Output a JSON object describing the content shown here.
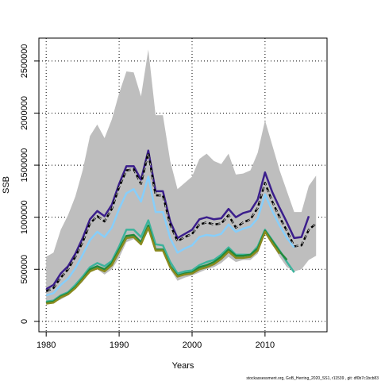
{
  "chart_data": {
    "type": "line",
    "title": "",
    "xlabel": "Years",
    "ylabel": "SSB",
    "xlim": [
      1979,
      2018.5
    ],
    "ylim": [
      -100000,
      2720000
    ],
    "x_ticks": [
      1980,
      1990,
      2000,
      2010
    ],
    "y_ticks": [
      0,
      500000,
      1000000,
      1500000,
      2000000,
      2500000
    ],
    "y_tick_labels": [
      "0",
      "500000",
      "1000000",
      "1500000",
      "2000000",
      "2500000"
    ],
    "grid": "dotted at ticks",
    "band": {
      "color": "#bebebe",
      "x": [
        1980,
        1981,
        1982,
        1983,
        1984,
        1985,
        1986,
        1987,
        1988,
        1989,
        1990,
        1991,
        1992,
        1993,
        1994,
        1995,
        1996,
        1997,
        1998,
        1999,
        2000,
        2001,
        2002,
        2003,
        2004,
        2005,
        2006,
        2007,
        2008,
        2009,
        2010,
        2011,
        2012,
        2013,
        2014,
        2015,
        2016,
        2017
      ],
      "upper": [
        620000,
        660000,
        880000,
        1020000,
        1200000,
        1450000,
        1780000,
        1890000,
        1760000,
        1940000,
        2190000,
        2400000,
        2390000,
        2160000,
        2610000,
        1980000,
        1980000,
        1540000,
        1270000,
        1330000,
        1390000,
        1560000,
        1610000,
        1540000,
        1510000,
        1610000,
        1410000,
        1420000,
        1450000,
        1620000,
        1930000,
        1690000,
        1450000,
        1250000,
        1050000,
        1050000,
        1300000,
        1400000
      ],
      "lower": [
        180000,
        180000,
        210000,
        250000,
        310000,
        380000,
        470000,
        500000,
        450000,
        500000,
        610000,
        760000,
        790000,
        730000,
        870000,
        690000,
        690000,
        500000,
        390000,
        420000,
        440000,
        470000,
        500000,
        520000,
        560000,
        620000,
        570000,
        590000,
        590000,
        650000,
        850000,
        740000,
        620000,
        520000,
        480000,
        500000,
        590000,
        630000
      ]
    },
    "series": [
      {
        "color": "#3b1e8c",
        "x": [
          1980,
          1981,
          1982,
          1983,
          1984,
          1985,
          1986,
          1987,
          1988,
          1989,
          1990,
          1991,
          1992,
          1993,
          1994,
          1995,
          1996,
          1997,
          1998,
          1999,
          2000,
          2001,
          2002,
          2003,
          2004,
          2005,
          2006,
          2007,
          2008,
          2009,
          2010,
          2011,
          2012,
          2013,
          2014,
          2015,
          2016
        ],
        "values": [
          310000,
          350000,
          460000,
          530000,
          650000,
          800000,
          980000,
          1060000,
          1010000,
          1120000,
          1320000,
          1490000,
          1490000,
          1360000,
          1640000,
          1250000,
          1250000,
          960000,
          800000,
          840000,
          880000,
          980000,
          1000000,
          980000,
          990000,
          1080000,
          1000000,
          1040000,
          1060000,
          1170000,
          1430000,
          1240000,
          1090000,
          950000,
          800000,
          810000,
          1010000
        ]
      },
      {
        "color": "#000000",
        "dashed": true,
        "x": [
          1980,
          1981,
          1982,
          1983,
          1984,
          1985,
          1986,
          1987,
          1988,
          1989,
          1990,
          1991,
          1992,
          1993,
          1994,
          1995,
          1996,
          1997,
          1998,
          1999,
          2000,
          2001,
          2002,
          2003,
          2004,
          2005,
          2006,
          2007,
          2008,
          2009,
          2010,
          2011,
          2012,
          2013,
          2014,
          2015,
          2016,
          2017
        ],
        "values": [
          290000,
          320000,
          420000,
          500000,
          620000,
          760000,
          940000,
          1010000,
          960000,
          1080000,
          1290000,
          1450000,
          1460000,
          1320000,
          1620000,
          1210000,
          1210000,
          930000,
          770000,
          810000,
          840000,
          930000,
          950000,
          930000,
          940000,
          1020000,
          900000,
          950000,
          980000,
          1090000,
          1330000,
          1150000,
          1000000,
          870000,
          720000,
          730000,
          880000,
          940000
        ]
      },
      {
        "color": "#87cefa",
        "x": [
          1980,
          1981,
          1982,
          1983,
          1984,
          1985,
          1986,
          1987,
          1988,
          1989,
          1990,
          1991,
          1992,
          1993,
          1994,
          1995,
          1996,
          1997,
          1998,
          1999,
          2000,
          2001,
          2002,
          2003,
          2004,
          2005,
          2006,
          2007,
          2008,
          2009,
          2010,
          2011,
          2012,
          2013,
          2014
        ],
        "values": [
          250000,
          270000,
          350000,
          410000,
          510000,
          640000,
          780000,
          860000,
          810000,
          900000,
          1080000,
          1230000,
          1270000,
          1150000,
          1390000,
          1050000,
          1050000,
          800000,
          660000,
          700000,
          730000,
          810000,
          830000,
          820000,
          840000,
          930000,
          860000,
          890000,
          910000,
          990000,
          1220000,
          1060000,
          920000,
          800000,
          710000
        ]
      },
      {
        "color": "#3cb39c",
        "x": [
          1980,
          1981,
          1982,
          1983,
          1984,
          1985,
          1986,
          1987,
          1988,
          1989,
          1990,
          1991,
          1992,
          1993,
          1994,
          1995,
          1996,
          1997,
          1998,
          1999,
          2000,
          2001,
          2002,
          2003,
          2004,
          2005,
          2006,
          2007,
          2008,
          2009,
          2010,
          2011,
          2012,
          2013,
          2014
        ],
        "values": [
          190000,
          200000,
          250000,
          280000,
          350000,
          430000,
          520000,
          560000,
          530000,
          580000,
          720000,
          880000,
          880000,
          810000,
          970000,
          740000,
          730000,
          570000,
          460000,
          480000,
          490000,
          540000,
          570000,
          590000,
          640000,
          710000,
          640000,
          640000,
          640000,
          720000,
          880000,
          780000,
          680000,
          570000,
          470000
        ]
      },
      {
        "color": "#1f8a3c",
        "x": [
          1980,
          1981,
          1982,
          1983,
          1984,
          1985,
          1986,
          1987,
          1988,
          1989,
          1990,
          1991,
          1992,
          1993,
          1994,
          1995,
          1996,
          1997,
          1998,
          1999,
          2000,
          2001,
          2002,
          2003,
          2004,
          2005,
          2006,
          2007,
          2008,
          2009,
          2010,
          2011,
          2012,
          2013
        ],
        "values": [
          180000,
          190000,
          240000,
          270000,
          330000,
          410000,
          500000,
          530000,
          500000,
          560000,
          690000,
          820000,
          830000,
          760000,
          920000,
          690000,
          690000,
          530000,
          440000,
          460000,
          470000,
          520000,
          540000,
          570000,
          620000,
          690000,
          630000,
          630000,
          640000,
          700000,
          870000,
          770000,
          670000,
          590000
        ]
      },
      {
        "color": "#8a8a1e",
        "x": [
          1980,
          1981,
          1982,
          1983,
          1984,
          1985,
          1986,
          1987,
          1988,
          1989,
          1990,
          1991,
          1992,
          1993,
          1994,
          1995,
          1996,
          1997,
          1998,
          1999,
          2000,
          2001,
          2002,
          2003,
          2004,
          2005,
          2006,
          2007,
          2008,
          2009,
          2010,
          2011,
          2012
        ],
        "values": [
          170000,
          180000,
          230000,
          260000,
          320000,
          400000,
          480000,
          510000,
          480000,
          540000,
          670000,
          800000,
          810000,
          740000,
          900000,
          680000,
          680000,
          520000,
          430000,
          450000,
          460000,
          500000,
          520000,
          550000,
          600000,
          670000,
          610000,
          610000,
          620000,
          680000,
          860000,
          750000,
          650000
        ]
      }
    ]
  },
  "footer": "stockassessment.org,  GoB_Herring_2020_SS1,  r11539 ,  git: df0b7c1bcb83"
}
